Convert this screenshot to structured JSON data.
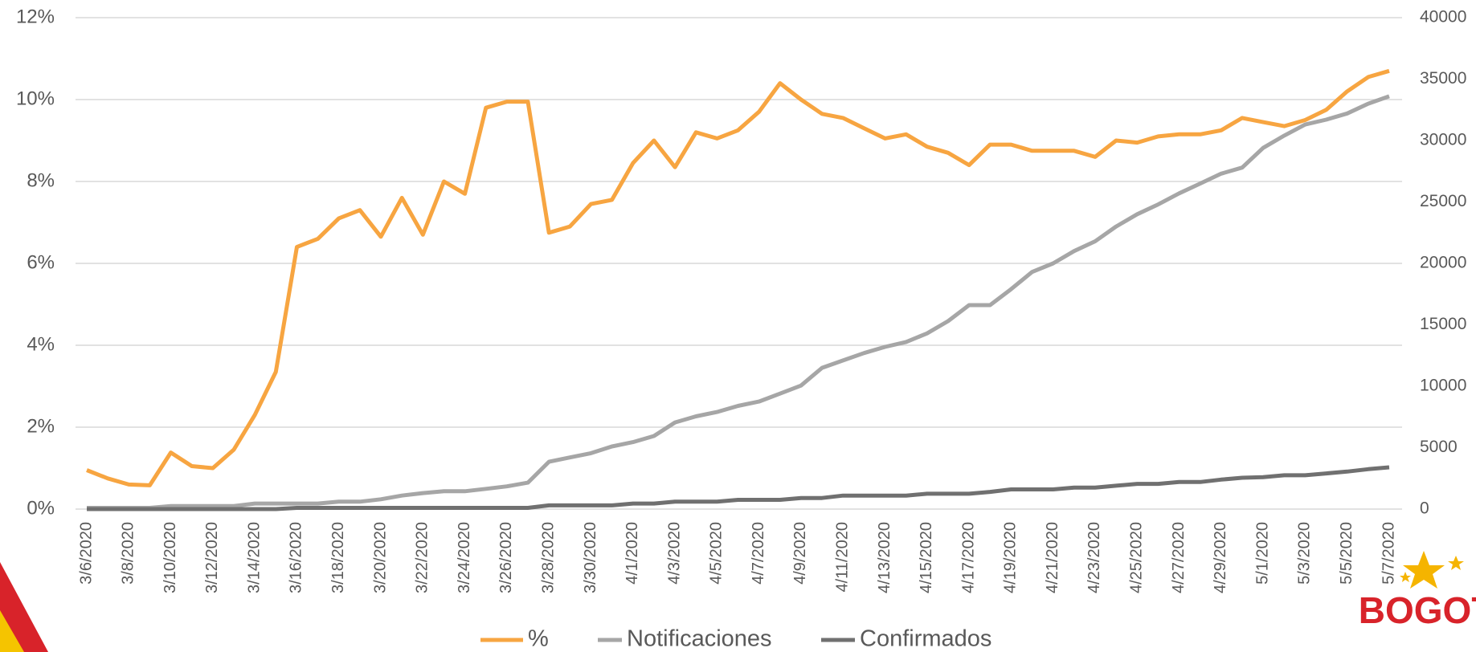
{
  "chart_data": {
    "type": "line",
    "categories": [
      "3/6/2020",
      null,
      "3/8/2020",
      null,
      "3/10/2020",
      null,
      "3/12/2020",
      null,
      "3/14/2020",
      null,
      "3/16/2020",
      null,
      "3/18/2020",
      null,
      "3/20/2020",
      null,
      "3/22/2020",
      null,
      "3/24/2020",
      null,
      "3/26/2020",
      null,
      "3/28/2020",
      null,
      "3/30/2020",
      null,
      "4/1/2020",
      null,
      "4/3/2020",
      null,
      "4/5/2020",
      null,
      "4/7/2020",
      null,
      "4/9/2020",
      null,
      "4/11/2020",
      null,
      "4/13/2020",
      null,
      "4/15/2020",
      null,
      "4/17/2020",
      null,
      "4/19/2020",
      null,
      "4/21/2020",
      null,
      "4/23/2020",
      null,
      "4/25/2020",
      null,
      "4/27/2020",
      null,
      "4/29/2020",
      null,
      "5/1/2020",
      null,
      "5/3/2020",
      null,
      "5/5/2020",
      null,
      "5/7/2020"
    ],
    "series": [
      {
        "name": "%",
        "color": "#f7a541",
        "axis": "y",
        "values": [
          0.95,
          0.75,
          0.6,
          0.58,
          1.38,
          1.05,
          1.0,
          1.45,
          2.3,
          3.35,
          6.4,
          6.6,
          7.1,
          7.3,
          6.65,
          7.6,
          6.7,
          8.0,
          7.7,
          9.8,
          9.95,
          9.95,
          6.75,
          6.9,
          7.45,
          7.55,
          8.45,
          9.0,
          8.35,
          9.2,
          9.05,
          9.25,
          9.7,
          10.4,
          10.0,
          9.65,
          9.55,
          9.3,
          9.05,
          9.15,
          8.85,
          8.7,
          8.4,
          8.9,
          8.9,
          8.75,
          8.75,
          8.75,
          8.6,
          9.0,
          8.95,
          9.1,
          9.15,
          9.15,
          9.25,
          9.55,
          9.45,
          9.35,
          9.5,
          9.75,
          10.2,
          10.55,
          10.7
        ]
      },
      {
        "name": "Notificaciones",
        "color": "#a6a6a6",
        "axis": "y2",
        "values": [
          100,
          100,
          100,
          100,
          250,
          250,
          250,
          250,
          450,
          450,
          450,
          450,
          600,
          600,
          800,
          1100,
          1300,
          1450,
          1450,
          1650,
          1850,
          2150,
          3850,
          4200,
          4550,
          5100,
          5450,
          5950,
          7050,
          7550,
          7900,
          8400,
          8750,
          9400,
          10050,
          11500,
          12100,
          12700,
          13200,
          13600,
          14300,
          15300,
          16600,
          16600,
          17900,
          19300,
          20000,
          21000,
          21800,
          23000,
          24000,
          24800,
          25700,
          26500,
          27300,
          27800,
          29400,
          30400,
          31300,
          31700,
          32200,
          33000,
          33600
        ]
      },
      {
        "name": "Confirmados",
        "color": "#707070",
        "axis": "y2",
        "values": [
          0,
          0,
          0,
          0,
          0,
          0,
          0,
          0,
          0,
          0,
          100,
          100,
          100,
          100,
          100,
          100,
          100,
          100,
          100,
          100,
          100,
          100,
          300,
          300,
          300,
          300,
          450,
          450,
          600,
          600,
          600,
          750,
          750,
          750,
          900,
          900,
          1100,
          1100,
          1100,
          1100,
          1250,
          1250,
          1250,
          1400,
          1600,
          1600,
          1600,
          1750,
          1750,
          1900,
          2050,
          2050,
          2200,
          2200,
          2400,
          2550,
          2600,
          2750,
          2750,
          2900,
          3050,
          3250,
          3400
        ]
      }
    ],
    "ylim": [
      0,
      12
    ],
    "yticks": [
      {
        "value": 0,
        "label": "0%"
      },
      {
        "value": 2,
        "label": "2%"
      },
      {
        "value": 4,
        "label": "4%"
      },
      {
        "value": 6,
        "label": "6%"
      },
      {
        "value": 8,
        "label": "8%"
      },
      {
        "value": 10,
        "label": "10%"
      },
      {
        "value": 12,
        "label": "12%"
      }
    ],
    "y2lim": [
      0,
      40000
    ],
    "y2ticks": [
      0,
      5000,
      10000,
      15000,
      20000,
      25000,
      30000,
      35000,
      40000
    ],
    "grid": true,
    "legend": "bottom",
    "logo_text": "BOGOTA"
  }
}
